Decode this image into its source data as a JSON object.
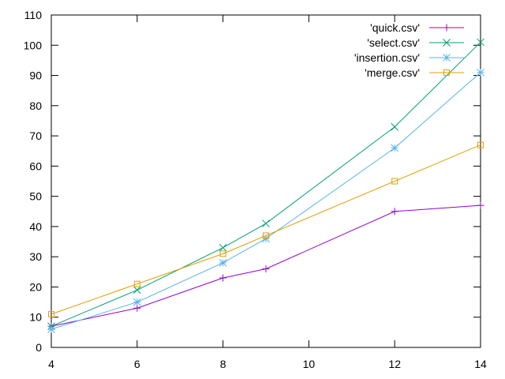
{
  "chart_data": {
    "type": "line",
    "title": "",
    "xlabel": "",
    "ylabel": "",
    "xlim": [
      4,
      14
    ],
    "ylim": [
      0,
      110
    ],
    "xticks": [
      4,
      6,
      8,
      10,
      12,
      14
    ],
    "yticks": [
      0,
      10,
      20,
      30,
      40,
      50,
      60,
      70,
      80,
      90,
      100,
      110
    ],
    "grid": false,
    "legend": "top-right",
    "x": [
      4,
      6,
      8,
      9,
      12,
      14
    ],
    "series": [
      {
        "name": "'quick.csv'",
        "color": "#9400d3",
        "marker": "plus",
        "values": [
          7,
          13,
          23,
          26,
          45,
          47
        ]
      },
      {
        "name": "'select.csv'",
        "color": "#009e73",
        "marker": "x",
        "values": [
          7,
          19,
          33,
          41,
          73,
          101
        ]
      },
      {
        "name": "'insertion.csv'",
        "color": "#56b4e9",
        "marker": "star",
        "values": [
          6,
          15,
          28,
          36,
          66,
          91
        ]
      },
      {
        "name": "'merge.csv'",
        "color": "#e69f00",
        "marker": "square",
        "values": [
          11,
          21,
          31,
          37,
          55,
          67
        ]
      }
    ]
  }
}
